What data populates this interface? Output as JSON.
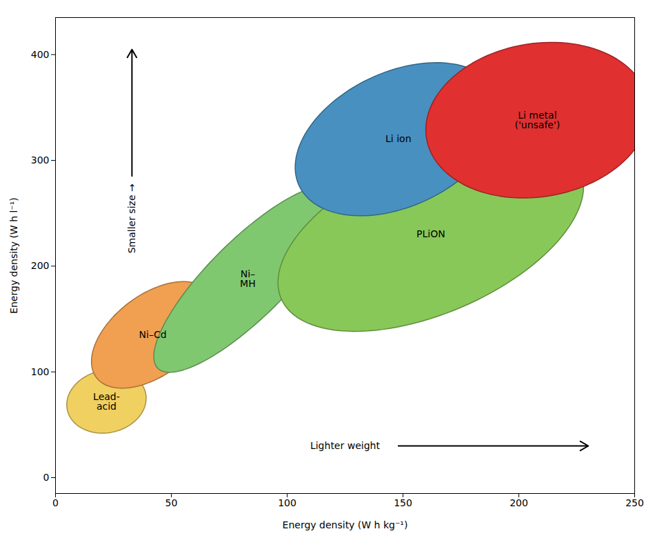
{
  "chart_data": {
    "type": "ellipse",
    "xlabel": "Energy density (W h kg⁻¹)",
    "ylabel": "Energy density (W h l⁻¹)",
    "xlim": [
      0,
      250
    ],
    "ylim": [
      -15,
      435
    ],
    "xticks": [
      0,
      50,
      100,
      150,
      200,
      250
    ],
    "yticks": [
      0,
      100,
      200,
      300,
      400
    ],
    "grid": false,
    "series": [
      {
        "name": "Lead-\nacid",
        "color": "#f0d060",
        "cx": 22,
        "cy": 72,
        "width": 34,
        "height": 60,
        "angle": -5
      },
      {
        "name": "Ni–Cd",
        "color": "#f0a050",
        "cx": 42,
        "cy": 135,
        "width": 44,
        "height": 105,
        "angle": -18
      },
      {
        "name": "Ni–\nMH",
        "color": "#80c870",
        "cx": 83,
        "cy": 188,
        "width": 42,
        "height": 190,
        "angle": -22
      },
      {
        "name": "PLiON",
        "color": "#88c858",
        "cx": 162,
        "cy": 230,
        "width": 105,
        "height": 200,
        "angle": -28
      },
      {
        "name": "Li ion",
        "color": "#4890c0",
        "cx": 148,
        "cy": 320,
        "width": 80,
        "height": 150,
        "angle": -18
      },
      {
        "name": "Li metal\n('unsafe')",
        "color": "#e03030",
        "cx": 208,
        "cy": 338,
        "width": 95,
        "height": 148,
        "angle": -8
      }
    ],
    "annotations": [
      "Smaller size →",
      "Lighter weight"
    ]
  }
}
